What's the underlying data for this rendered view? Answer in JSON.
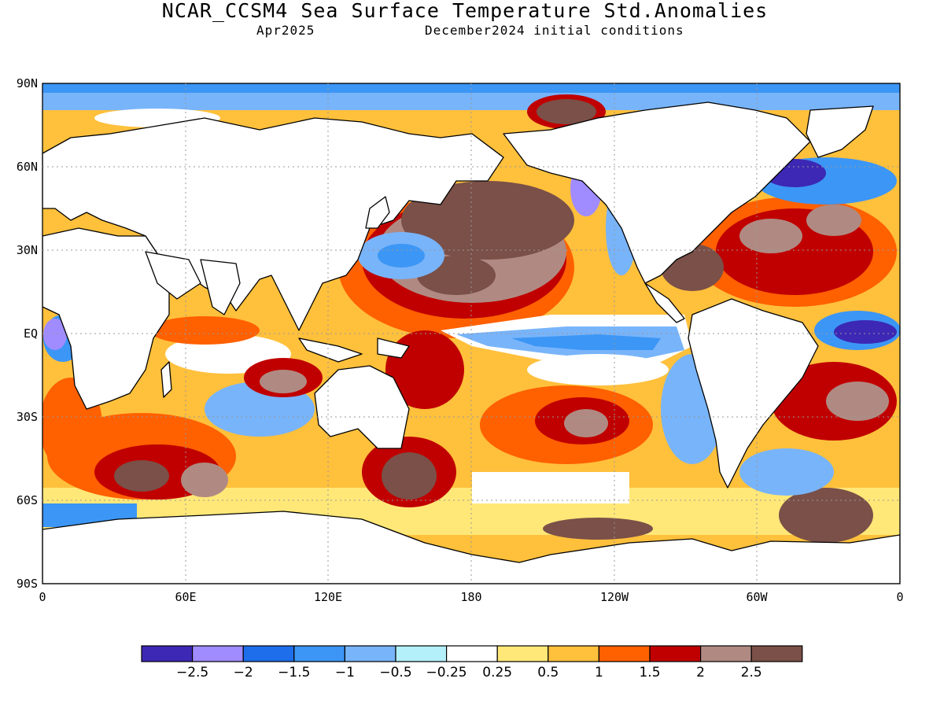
{
  "title": "NCAR_CCSM4 Sea Surface Temperature Std.Anomalies",
  "subtitle_valid": "Apr2025",
  "subtitle_init": "December2024 initial conditions",
  "y_ticks": [
    "90N",
    "60N",
    "30N",
    "EQ",
    "30S",
    "60S",
    "90S"
  ],
  "x_ticks": [
    "0",
    "60E",
    "120E",
    "180",
    "120W",
    "60W",
    "0"
  ],
  "colorbar": {
    "colors": [
      "#3c28b4",
      "#a08cff",
      "#1e6eeb",
      "#3c96f5",
      "#78b4fa",
      "#b4f0fa",
      "#ffffff",
      "#ffe878",
      "#ffc03c",
      "#ff6000",
      "#c00000",
      "#b08a82",
      "#7a5048"
    ],
    "labels": [
      "-2.5",
      "-2",
      "-1.5",
      "-1",
      "-0.5",
      "-0.25",
      "0.25",
      "0.5",
      "1",
      "1.5",
      "2",
      "2.5"
    ]
  }
}
